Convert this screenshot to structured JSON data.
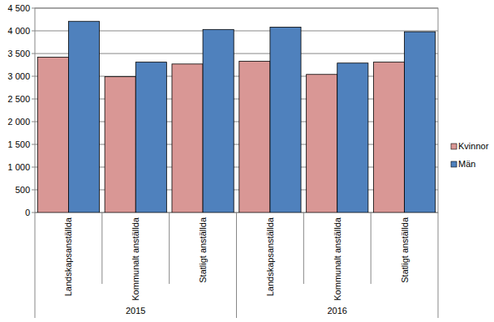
{
  "chart_data": {
    "type": "bar",
    "categories": [
      "Landskapsanställda",
      "Kommunalt anställda",
      "Statligt anställda",
      "Landskapsanställda",
      "Kommunalt anställda",
      "Statligt anställda"
    ],
    "category_groups": [
      {
        "label": "2015",
        "count": 3
      },
      {
        "label": "2016",
        "count": 3
      }
    ],
    "series": [
      {
        "name": "Kvinnor",
        "color": "#d99795",
        "values": [
          3420,
          2990,
          3270,
          3330,
          3040,
          3310
        ]
      },
      {
        "name": "Män",
        "color": "#4f81bd",
        "values": [
          4210,
          3310,
          4030,
          4080,
          3290,
          3980
        ]
      }
    ],
    "ylim": [
      0,
      4500
    ],
    "yticks": [
      0,
      500,
      {
        "value": 1000,
        "label": "1 000"
      },
      {
        "value": 1500,
        "label": "1 500"
      },
      {
        "value": 2000,
        "label": "2 000"
      },
      {
        "value": 2500,
        "label": "2 500"
      },
      {
        "value": 3000,
        "label": "3 000"
      },
      {
        "value": 3500,
        "label": "3 500"
      },
      {
        "value": 4000,
        "label": "4 000"
      },
      {
        "value": 4500,
        "label": "4 500"
      }
    ],
    "grid": true,
    "legend": "right"
  }
}
